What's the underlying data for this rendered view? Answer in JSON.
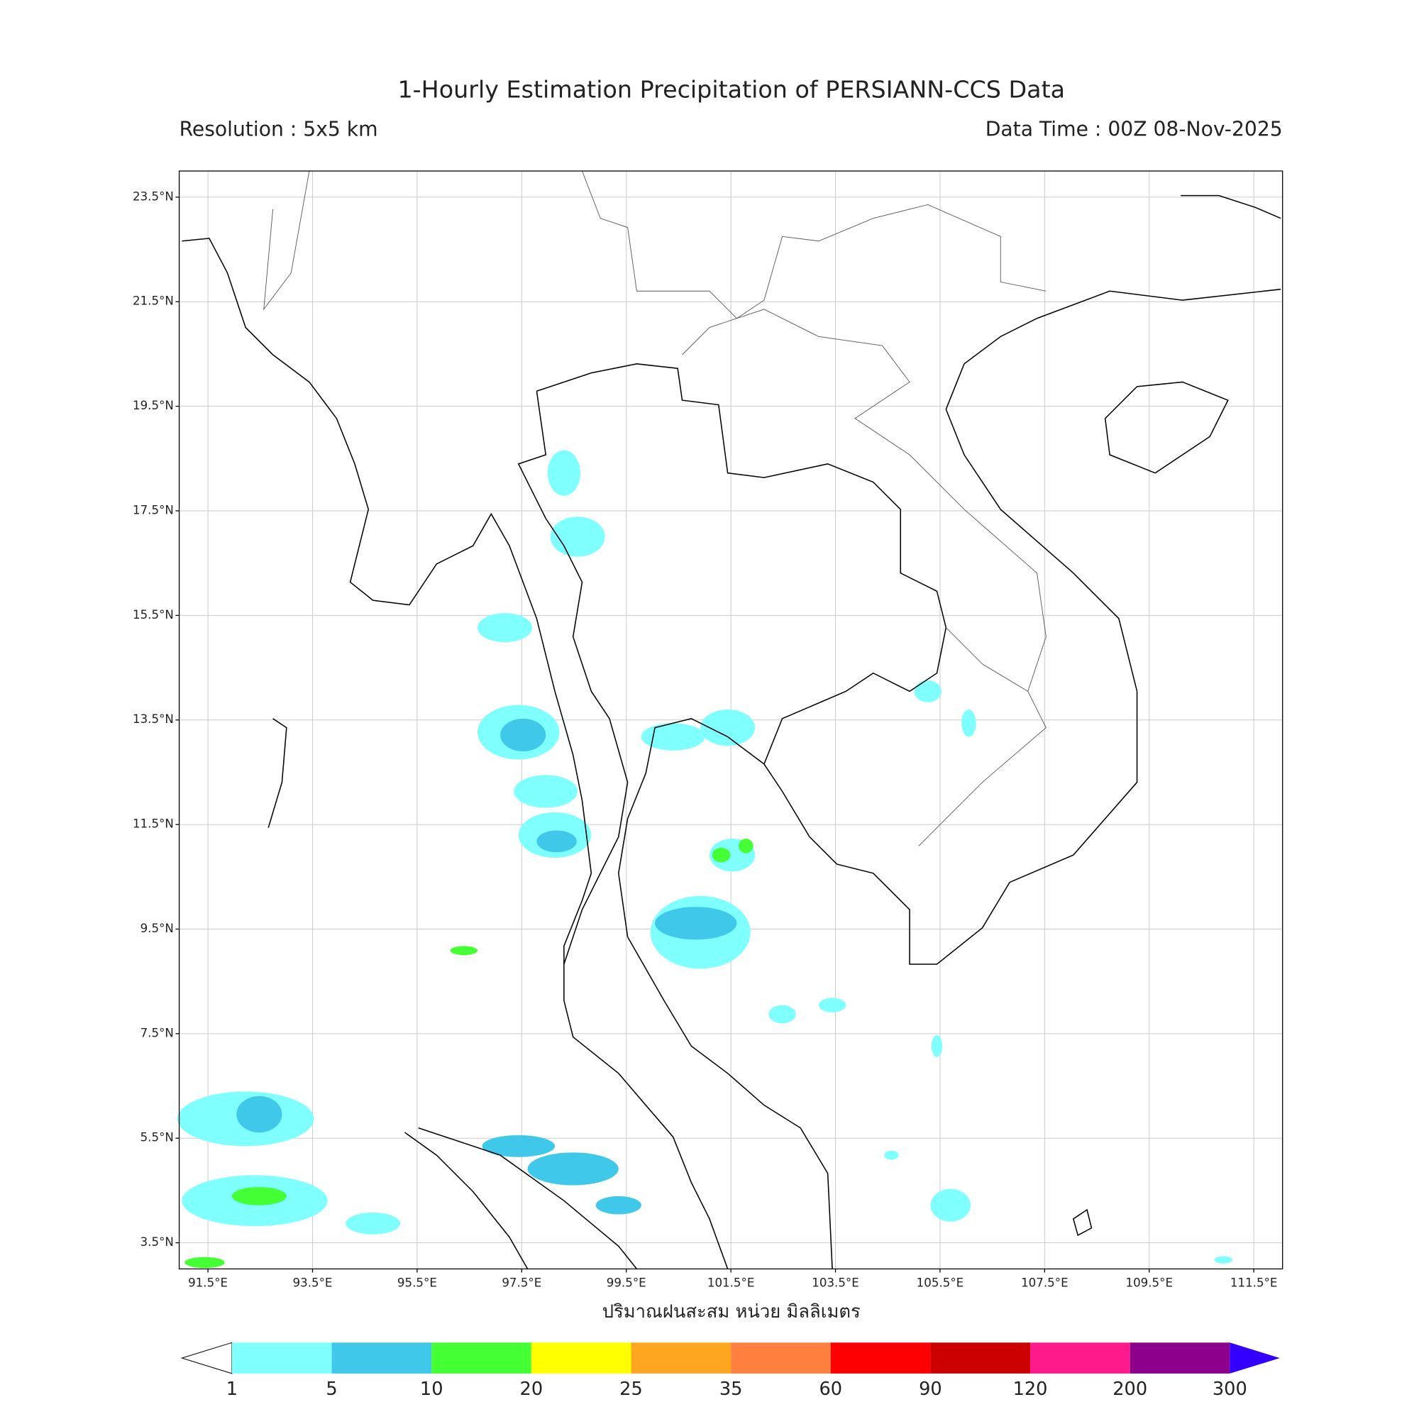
{
  "title": "1-Hourly Estimation Precipitation of PERSIANN-CCS Data",
  "resolution": "Resolution : 5x5 km",
  "data_time": "Data Time : 00Z 08-Nov-2025",
  "map": {
    "xlim": [
      90.95,
      112.05
    ],
    "ylim": [
      3,
      24
    ],
    "xticks": [
      {
        "value": 91.5,
        "label": "91.5°E"
      },
      {
        "value": 93.5,
        "label": "93.5°E"
      },
      {
        "value": 95.5,
        "label": "95.5°E"
      },
      {
        "value": 97.5,
        "label": "97.5°E"
      },
      {
        "value": 99.5,
        "label": "99.5°E"
      },
      {
        "value": 101.5,
        "label": "101.5°E"
      },
      {
        "value": 103.5,
        "label": "103.5°E"
      },
      {
        "value": 105.5,
        "label": "105.5°E"
      },
      {
        "value": 107.5,
        "label": "107.5°E"
      },
      {
        "value": 109.5,
        "label": "109.5°E"
      },
      {
        "value": 111.5,
        "label": "111.5°E"
      }
    ],
    "yticks": [
      {
        "value": 3.5,
        "label": "3.5°N"
      },
      {
        "value": 5.5,
        "label": "5.5°N"
      },
      {
        "value": 7.5,
        "label": "7.5°N"
      },
      {
        "value": 9.5,
        "label": "9.5°N"
      },
      {
        "value": 11.5,
        "label": "11.5°N"
      },
      {
        "value": 13.5,
        "label": "13.5°N"
      },
      {
        "value": 15.5,
        "label": "15.5°N"
      },
      {
        "value": 17.5,
        "label": "17.5°N"
      },
      {
        "value": 19.5,
        "label": "19.5°N"
      },
      {
        "value": 21.5,
        "label": "21.5°N"
      },
      {
        "value": 23.5,
        "label": "23.5°N"
      }
    ],
    "grid": true,
    "xlabel": "ปริมาณฝนสะสม หน่วย มิลลิเมตร"
  },
  "colorbar": {
    "levels": [
      1,
      5,
      10,
      20,
      25,
      35,
      60,
      90,
      120,
      200,
      300
    ],
    "colors": [
      "#80ffff",
      "#40c8ea",
      "#44ff33",
      "#ffff00",
      "#ffa621",
      "#ff7f3f",
      "#ff0000",
      "#cc0000",
      "#ff1a8c",
      "#8c008c"
    ],
    "over_color": "#3300ff"
  }
}
